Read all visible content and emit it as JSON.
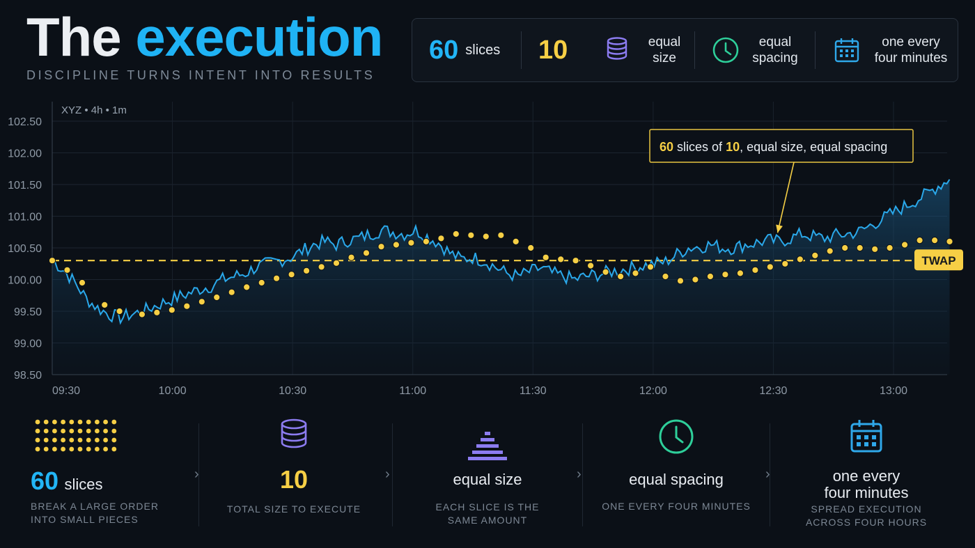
{
  "header": {
    "title_part1": "The",
    "title_part2": "execution",
    "subtitle": "DISCIPLINE TURNS INTENT INTO RESULTS"
  },
  "topbar": {
    "slices_count": "60",
    "slices_label": "slices",
    "size_value": "10",
    "size_label": "equal size",
    "spacing_label": "equal spacing",
    "cadence_label": "one every four minutes",
    "colors": {
      "blue": "#22b5f6",
      "yellow": "#f6cf45",
      "purple": "#8c7cf0",
      "green": "#2ecf9a",
      "calendar": "#2fa8ea"
    }
  },
  "chart_data": {
    "type": "line",
    "chart_label": "XYZ • 4h • 1m",
    "y_ticks": [
      "102.50",
      "102.00",
      "101.50",
      "101.00",
      "100.50",
      "100.00",
      "99.50",
      "99.00",
      "98.50"
    ],
    "ylim": [
      98.5,
      102.5
    ],
    "x_ticks": [
      "09:30",
      "10:00",
      "10:30",
      "11:00",
      "11:30",
      "12:00",
      "12:30",
      "13:00"
    ],
    "x_domain_minutes_from_0930": [
      0,
      224
    ],
    "twap_value": 100.3,
    "twap_label": "TWAP",
    "annotation": {
      "n": "60",
      "t1": " slices of ",
      "n2": "10",
      "t2": ", equal size, equal spacing"
    },
    "annotation_target": {
      "minute": 194,
      "value": 100.65
    },
    "series": [
      {
        "name": "price",
        "color": "#2aa8ea",
        "points": [
          [
            0,
            100.3
          ],
          [
            4,
            100.15
          ],
          [
            8,
            99.95
          ],
          [
            12,
            99.7
          ],
          [
            16,
            99.55
          ],
          [
            20,
            99.45
          ],
          [
            24,
            99.4
          ],
          [
            28,
            99.45
          ],
          [
            32,
            99.5
          ],
          [
            36,
            99.58
          ],
          [
            40,
            99.65
          ],
          [
            44,
            99.72
          ],
          [
            48,
            99.78
          ],
          [
            52,
            99.85
          ],
          [
            56,
            99.9
          ],
          [
            60,
            100.0
          ],
          [
            64,
            100.05
          ],
          [
            68,
            100.1
          ],
          [
            72,
            100.2
          ],
          [
            76,
            100.25
          ],
          [
            80,
            100.3
          ],
          [
            84,
            100.35
          ],
          [
            88,
            100.45
          ],
          [
            92,
            100.55
          ],
          [
            96,
            100.6
          ],
          [
            100,
            100.55
          ],
          [
            104,
            100.62
          ],
          [
            108,
            100.65
          ],
          [
            112,
            100.72
          ],
          [
            116,
            100.78
          ],
          [
            120,
            100.75
          ],
          [
            124,
            100.72
          ],
          [
            128,
            100.78
          ],
          [
            132,
            100.68
          ],
          [
            136,
            100.58
          ],
          [
            140,
            100.42
          ],
          [
            144,
            100.32
          ],
          [
            148,
            100.35
          ],
          [
            152,
            100.3
          ],
          [
            156,
            100.2
          ],
          [
            160,
            100.1
          ],
          [
            164,
            100.05
          ],
          [
            168,
            100.12
          ],
          [
            172,
            100.18
          ],
          [
            176,
            100.1
          ],
          [
            180,
            100.05
          ],
          [
            184,
            100.0
          ],
          [
            188,
            100.05
          ],
          [
            192,
            100.08
          ],
          [
            196,
            100.12
          ],
          [
            200,
            100.15
          ],
          [
            204,
            100.18
          ],
          [
            208,
            100.22
          ],
          [
            212,
            100.25
          ],
          [
            216,
            100.28
          ],
          [
            220,
            100.4
          ],
          [
            224,
            100.5
          ],
          [
            228,
            100.52
          ],
          [
            232,
            100.55
          ],
          [
            236,
            100.5
          ],
          [
            240,
            100.5
          ],
          [
            244,
            100.55
          ],
          [
            248,
            100.58
          ],
          [
            252,
            100.62
          ],
          [
            256,
            100.6
          ],
          [
            260,
            100.65
          ],
          [
            264,
            100.72
          ],
          [
            268,
            100.68
          ],
          [
            272,
            100.65
          ],
          [
            276,
            100.7
          ],
          [
            280,
            100.72
          ],
          [
            284,
            100.75
          ],
          [
            288,
            100.85
          ],
          [
            292,
            100.95
          ],
          [
            296,
            101.05
          ],
          [
            300,
            101.15
          ],
          [
            304,
            101.25
          ],
          [
            308,
            101.35
          ],
          [
            312,
            101.48
          ],
          [
            316,
            101.58
          ]
        ]
      }
    ],
    "slice_markers": [
      [
        0,
        100.3
      ],
      [
        4,
        100.15
      ],
      [
        8,
        99.95
      ],
      [
        14,
        99.6
      ],
      [
        18,
        99.5
      ],
      [
        24,
        99.45
      ],
      [
        28,
        99.48
      ],
      [
        32,
        99.52
      ],
      [
        36,
        99.58
      ],
      [
        40,
        99.65
      ],
      [
        44,
        99.72
      ],
      [
        48,
        99.8
      ],
      [
        52,
        99.88
      ],
      [
        56,
        99.95
      ],
      [
        60,
        100.02
      ],
      [
        64,
        100.08
      ],
      [
        68,
        100.14
      ],
      [
        72,
        100.2
      ],
      [
        76,
        100.26
      ],
      [
        80,
        100.35
      ],
      [
        84,
        100.42
      ],
      [
        88,
        100.52
      ],
      [
        92,
        100.55
      ],
      [
        96,
        100.58
      ],
      [
        100,
        100.6
      ],
      [
        104,
        100.65
      ],
      [
        108,
        100.72
      ],
      [
        112,
        100.7
      ],
      [
        116,
        100.68
      ],
      [
        120,
        100.7
      ],
      [
        124,
        100.6
      ],
      [
        128,
        100.5
      ],
      [
        132,
        100.35
      ],
      [
        136,
        100.32
      ],
      [
        140,
        100.3
      ],
      [
        144,
        100.22
      ],
      [
        148,
        100.12
      ],
      [
        152,
        100.05
      ],
      [
        156,
        100.1
      ],
      [
        160,
        100.2
      ],
      [
        164,
        100.05
      ],
      [
        168,
        99.98
      ],
      [
        172,
        100.0
      ],
      [
        176,
        100.05
      ],
      [
        180,
        100.08
      ],
      [
        184,
        100.1
      ],
      [
        188,
        100.15
      ],
      [
        192,
        100.2
      ],
      [
        196,
        100.25
      ],
      [
        200,
        100.32
      ],
      [
        204,
        100.38
      ],
      [
        208,
        100.45
      ],
      [
        212,
        100.5
      ],
      [
        216,
        100.5
      ],
      [
        220,
        100.48
      ],
      [
        224,
        100.5
      ],
      [
        228,
        100.55
      ],
      [
        232,
        100.62
      ],
      [
        236,
        100.62
      ],
      [
        240,
        100.6
      ]
    ]
  },
  "cards": [
    {
      "big": "60",
      "word": "slices",
      "sub1": "BREAK A LARGE ORDER",
      "sub2": "INTO SMALL PIECES"
    },
    {
      "big": "10",
      "sub1": "TOTAL SIZE TO EXECUTE"
    },
    {
      "main": "equal size",
      "sub1": "EACH SLICE IS THE",
      "sub2": "SAME AMOUNT"
    },
    {
      "main": "equal spacing",
      "sub1": "ONE EVERY FOUR MINUTES"
    },
    {
      "main1": "one every",
      "main2": "four minutes",
      "sub1": "SPREAD EXECUTION",
      "sub2": "ACROSS FOUR HOURS"
    }
  ]
}
